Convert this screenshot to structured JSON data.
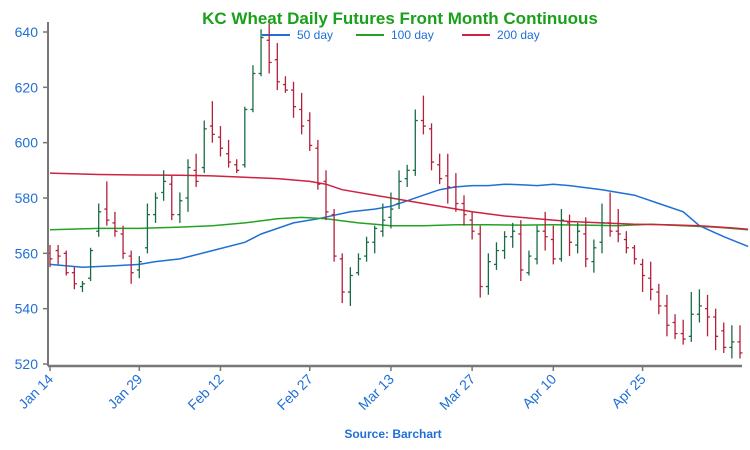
{
  "chart_data": {
    "type": "ohlc",
    "title": "KC Wheat Daily Futures Front Month Continuous",
    "source": "Source: Barchart",
    "xlabel": "",
    "ylabel": "",
    "ylim": [
      520,
      640
    ],
    "yticks": [
      520,
      540,
      560,
      580,
      600,
      620,
      640
    ],
    "xticks": [
      {
        "label": "Jan 14",
        "index": 0
      },
      {
        "label": "Jan 29",
        "index": 11
      },
      {
        "label": "Feb 12",
        "index": 21
      },
      {
        "label": "Feb 27",
        "index": 32
      },
      {
        "label": "Mar 13",
        "index": 42
      },
      {
        "label": "Mar 27",
        "index": 52
      },
      {
        "label": "Apr 10",
        "index": 62
      },
      {
        "label": "Apr 25",
        "index": 73
      }
    ],
    "x_count": 86,
    "colors": {
      "up": "#1a6b45",
      "down": "#b3203a",
      "ma50": "#1f6fd6",
      "ma100": "#23a323",
      "ma200": "#d0213f",
      "title": "#1aa01a",
      "axis_text": "#1f6fd6",
      "source": "#1f6fd6",
      "axis": "#777777"
    },
    "legend": {
      "position": "top",
      "items": [
        {
          "name": "50 day",
          "series": "ma50"
        },
        {
          "name": "100 day",
          "series": "ma100"
        },
        {
          "name": "200 day",
          "series": "ma200"
        }
      ]
    },
    "series": [
      {
        "name": "50 day",
        "key": "ma50",
        "points": [
          [
            0,
            556
          ],
          [
            4,
            555
          ],
          [
            8,
            555.5
          ],
          [
            11,
            556
          ],
          [
            13,
            557
          ],
          [
            16,
            558
          ],
          [
            20,
            561
          ],
          [
            24,
            564
          ],
          [
            26,
            567
          ],
          [
            30,
            571
          ],
          [
            33,
            572.5
          ],
          [
            37,
            575
          ],
          [
            40,
            576
          ],
          [
            42,
            577
          ],
          [
            44,
            579
          ],
          [
            46,
            581
          ],
          [
            48,
            583
          ],
          [
            50,
            584
          ],
          [
            52,
            584.5
          ],
          [
            54,
            584.5
          ],
          [
            56,
            585
          ],
          [
            58,
            584.8
          ],
          [
            60,
            584.5
          ],
          [
            62,
            585
          ],
          [
            64,
            584.5
          ],
          [
            68,
            583
          ],
          [
            72,
            581
          ],
          [
            75,
            578
          ],
          [
            78,
            575
          ],
          [
            80,
            570
          ],
          [
            83,
            566
          ],
          [
            86,
            562.5
          ]
        ]
      },
      {
        "name": "100 day",
        "key": "ma100",
        "points": [
          [
            0,
            568.5
          ],
          [
            6,
            569
          ],
          [
            11,
            569
          ],
          [
            16,
            569.5
          ],
          [
            20,
            570
          ],
          [
            24,
            571
          ],
          [
            28,
            572.5
          ],
          [
            31,
            573
          ],
          [
            34,
            572.5
          ],
          [
            38,
            571
          ],
          [
            42,
            570
          ],
          [
            46,
            570
          ],
          [
            50,
            570.3
          ],
          [
            54,
            570.3
          ],
          [
            58,
            570.2
          ],
          [
            62,
            570.3
          ],
          [
            66,
            570.2
          ],
          [
            70,
            570
          ],
          [
            74,
            570.5
          ],
          [
            78,
            570
          ],
          [
            82,
            569.5
          ],
          [
            86,
            568.5
          ]
        ]
      },
      {
        "name": "200 day",
        "key": "ma200",
        "points": [
          [
            0,
            589
          ],
          [
            6,
            588.5
          ],
          [
            11,
            588.3
          ],
          [
            16,
            588.2
          ],
          [
            20,
            588
          ],
          [
            24,
            587.5
          ],
          [
            28,
            587
          ],
          [
            32,
            586
          ],
          [
            34,
            585
          ],
          [
            36,
            583
          ],
          [
            40,
            581
          ],
          [
            44,
            579
          ],
          [
            48,
            577
          ],
          [
            52,
            575
          ],
          [
            56,
            573.5
          ],
          [
            60,
            572.5
          ],
          [
            64,
            571.5
          ],
          [
            68,
            571
          ],
          [
            72,
            570.5
          ],
          [
            76,
            570.3
          ],
          [
            80,
            570
          ],
          [
            84,
            569.2
          ],
          [
            86,
            568.7
          ]
        ]
      }
    ],
    "bars": [
      [
        560,
        563,
        555,
        558
      ],
      [
        561,
        563,
        556,
        559
      ],
      [
        560,
        561,
        552,
        553
      ],
      [
        553,
        555,
        547,
        549
      ],
      [
        548,
        550,
        546,
        549
      ],
      [
        551,
        562,
        550,
        561
      ],
      [
        568,
        578,
        566,
        575
      ],
      [
        576,
        586,
        570,
        572
      ],
      [
        571,
        575,
        566,
        568
      ],
      [
        567,
        570,
        558,
        560
      ],
      [
        559,
        561,
        549,
        553
      ],
      [
        554,
        559,
        551,
        557
      ],
      [
        562,
        578,
        560,
        574
      ],
      [
        574,
        582,
        571,
        580
      ],
      [
        582,
        590,
        579,
        586
      ],
      [
        585,
        588,
        572,
        574
      ],
      [
        574,
        582,
        571,
        579
      ],
      [
        580,
        594,
        575,
        591
      ],
      [
        590,
        596,
        584,
        586
      ],
      [
        591,
        608,
        589,
        605
      ],
      [
        606,
        615,
        600,
        603
      ],
      [
        602,
        606,
        595,
        598
      ],
      [
        596,
        601,
        591,
        593
      ],
      [
        592,
        594,
        589,
        590
      ],
      [
        592,
        613,
        591,
        612
      ],
      [
        612,
        628,
        611,
        625
      ],
      [
        625,
        641,
        624,
        638
      ],
      [
        637,
        643,
        625,
        629
      ],
      [
        630,
        636,
        619,
        622
      ],
      [
        621,
        624,
        618,
        619
      ],
      [
        619,
        622,
        609,
        613
      ],
      [
        612,
        618,
        603,
        606
      ],
      [
        608,
        611,
        597,
        599
      ],
      [
        598,
        601,
        583,
        585
      ],
      [
        586,
        590,
        572,
        575
      ],
      [
        574,
        576,
        557,
        559
      ],
      [
        558,
        560,
        542,
        546
      ],
      [
        546,
        555,
        541,
        552
      ],
      [
        553,
        560,
        552,
        558
      ],
      [
        559,
        566,
        557,
        564
      ],
      [
        564,
        570,
        560,
        569
      ],
      [
        568,
        578,
        566,
        572
      ],
      [
        573,
        582,
        569,
        576
      ],
      [
        578,
        590,
        576,
        586
      ],
      [
        587,
        592,
        584,
        590
      ],
      [
        590,
        612,
        588,
        608
      ],
      [
        608,
        617,
        603,
        606
      ],
      [
        605,
        607,
        590,
        593
      ],
      [
        592,
        596,
        585,
        587
      ],
      [
        588,
        596,
        578,
        584
      ],
      [
        584,
        589,
        575,
        578
      ],
      [
        578,
        581,
        570,
        574
      ],
      [
        572,
        575,
        565,
        568
      ],
      [
        567,
        570,
        544,
        548
      ],
      [
        548,
        560,
        545,
        557
      ],
      [
        556,
        564,
        554,
        561
      ],
      [
        561,
        568,
        558,
        566
      ],
      [
        566,
        571,
        562,
        568
      ],
      [
        567,
        572,
        550,
        554
      ],
      [
        553,
        561,
        552,
        559
      ],
      [
        558,
        570,
        556,
        568
      ],
      [
        568,
        575,
        561,
        566
      ],
      [
        565,
        570,
        556,
        558
      ],
      [
        558,
        576,
        557,
        572
      ],
      [
        571,
        574,
        559,
        564
      ],
      [
        563,
        571,
        560,
        568
      ],
      [
        567,
        573,
        555,
        558
      ],
      [
        557,
        565,
        553,
        562
      ],
      [
        564,
        578,
        560,
        571
      ],
      [
        571,
        582,
        566,
        568
      ],
      [
        568,
        576,
        564,
        567
      ],
      [
        565,
        568,
        560,
        562
      ],
      [
        562,
        563,
        556,
        558
      ],
      [
        556,
        558,
        546,
        552
      ],
      [
        551,
        557,
        543,
        547
      ],
      [
        546,
        549,
        538,
        541
      ],
      [
        541,
        545,
        530,
        534
      ],
      [
        535,
        538,
        529,
        531
      ],
      [
        531,
        536,
        527,
        529
      ],
      [
        530,
        546,
        528,
        538
      ],
      [
        538,
        547,
        535,
        541
      ],
      [
        540,
        545,
        530,
        537
      ],
      [
        537,
        540,
        525,
        530
      ],
      [
        532,
        535,
        524,
        526
      ],
      [
        526,
        534,
        522,
        528
      ],
      [
        528,
        534,
        522,
        524
      ]
    ]
  }
}
